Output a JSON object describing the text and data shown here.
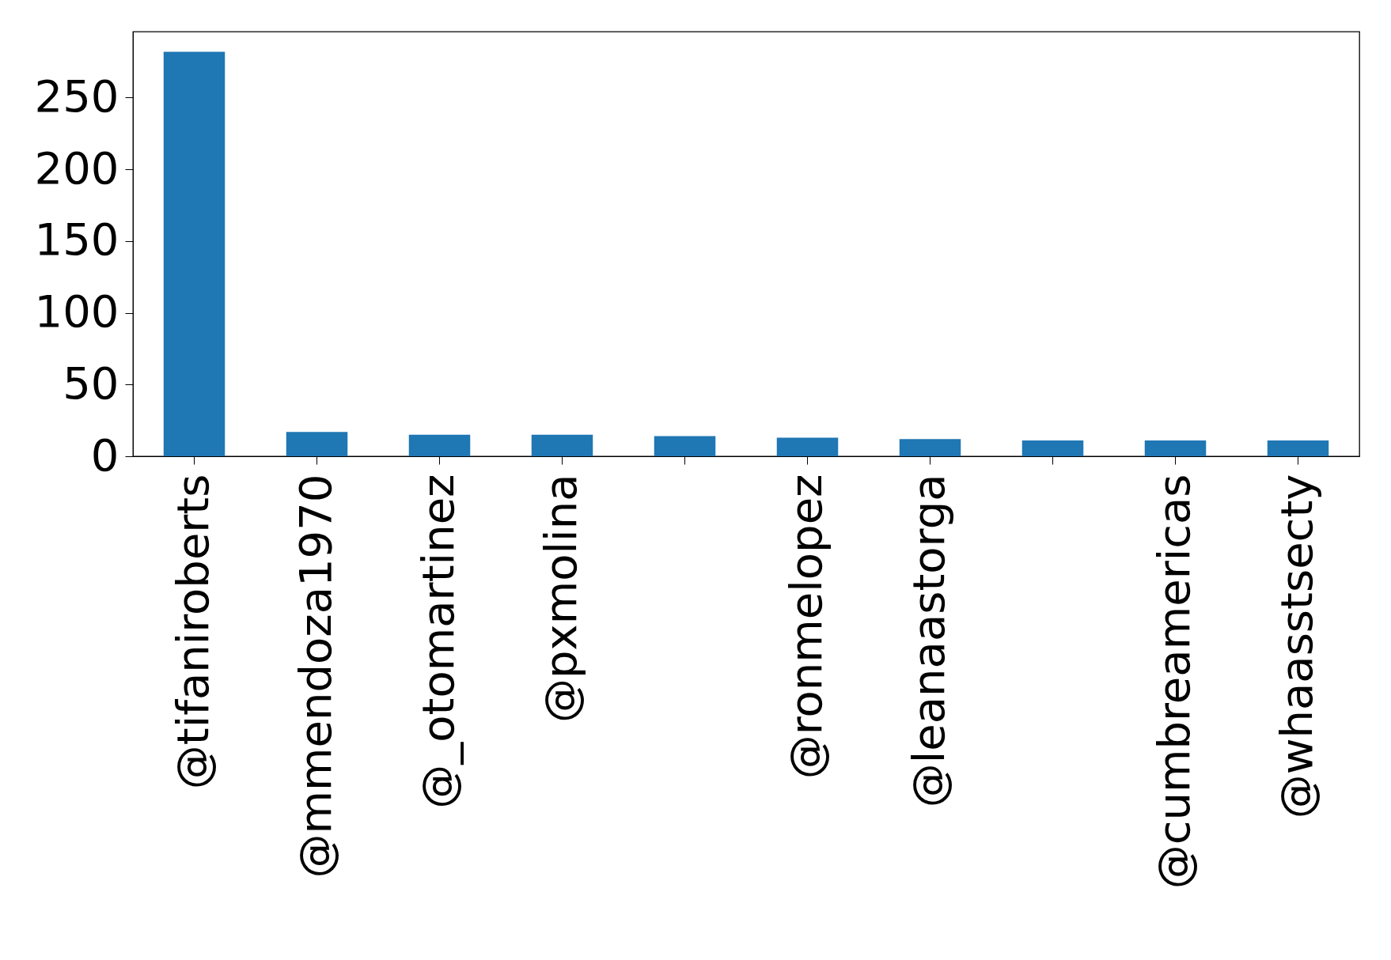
{
  "chart_data": {
    "type": "bar",
    "categories": [
      "@tifaniroberts",
      "@mmendoza1970",
      "@_otomartinez",
      "@pxmolina",
      null,
      "@ronmelopez",
      "@leanaastorga",
      null,
      "@cumbreamericas",
      "@whaasstsecty"
    ],
    "values": [
      282,
      17,
      15,
      15,
      14,
      13,
      12,
      11,
      11,
      11
    ],
    "color": "#1f77b4",
    "ylim": [
      0,
      296
    ],
    "yticks": [
      0,
      50,
      100,
      150,
      200,
      250
    ],
    "grid": false
  }
}
